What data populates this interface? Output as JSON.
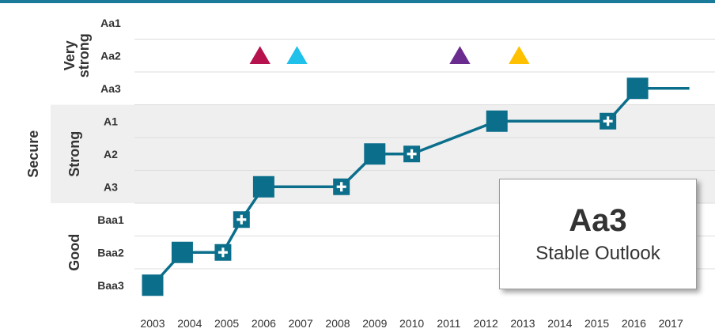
{
  "chart_data": {
    "type": "line",
    "title": "",
    "xlabel": "",
    "ylabel": "",
    "x_ticks": [
      "2003",
      "2004",
      "2005",
      "2006",
      "2007",
      "2008",
      "2009",
      "2010",
      "2011",
      "2012",
      "2013",
      "2014",
      "2015",
      "2016",
      "2017"
    ],
    "y_categories": [
      "Baa3",
      "Baa2",
      "Baa1",
      "A3",
      "A2",
      "A1",
      "Aa3",
      "Aa2",
      "Aa1"
    ],
    "groups": [
      {
        "label": "Secure",
        "members": [
          "Aa1",
          "Aa2",
          "Aa3",
          "A1",
          "A2",
          "A3",
          "Baa1",
          "Baa2",
          "Baa3"
        ]
      },
      {
        "label": "Very strong",
        "members": [
          "Aa1",
          "Aa2",
          "Aa3"
        ]
      },
      {
        "label": "Strong",
        "members": [
          "A1",
          "A2",
          "A3"
        ]
      },
      {
        "label": "Good",
        "members": [
          "Baa1",
          "Baa2",
          "Baa3"
        ]
      }
    ],
    "series": [
      {
        "color": "#0b6f8c",
        "points": [
          {
            "x": 2003.0,
            "rating": "Baa3",
            "positive_outlook": false
          },
          {
            "x": 2003.8,
            "rating": "Baa2",
            "positive_outlook": false
          },
          {
            "x": 2004.9,
            "rating": "Baa2",
            "positive_outlook": true
          },
          {
            "x": 2005.4,
            "rating": "Baa1",
            "positive_outlook": true
          },
          {
            "x": 2006.0,
            "rating": "A3",
            "positive_outlook": false
          },
          {
            "x": 2008.1,
            "rating": "A3",
            "positive_outlook": true
          },
          {
            "x": 2009.0,
            "rating": "A2",
            "positive_outlook": false
          },
          {
            "x": 2010.0,
            "rating": "A2",
            "positive_outlook": true
          },
          {
            "x": 2012.3,
            "rating": "A1",
            "positive_outlook": false
          },
          {
            "x": 2015.3,
            "rating": "A1",
            "positive_outlook": true
          },
          {
            "x": 2016.1,
            "rating": "Aa3",
            "positive_outlook": false
          },
          {
            "x": 2017.5,
            "rating": "Aa3",
            "positive_outlook": false
          }
        ]
      }
    ],
    "markers": [
      {
        "x": 2005.9,
        "rating": "Aa2",
        "color": "#b5124e"
      },
      {
        "x": 2006.9,
        "rating": "Aa2",
        "color": "#1fc0ea"
      },
      {
        "x": 2011.3,
        "rating": "Aa2",
        "color": "#6a2d8f"
      },
      {
        "x": 2012.9,
        "rating": "Aa2",
        "color": "#ffc000"
      }
    ],
    "band_colors": {
      "shaded": "#efefef",
      "plain": "#ffffff"
    },
    "grid": true
  },
  "callout": {
    "rating": "Aa3",
    "outlook": "Stable Outlook"
  },
  "colors": {
    "top_rule": "#1a7a99",
    "line": "#0b6f8c",
    "text": "#333333"
  }
}
